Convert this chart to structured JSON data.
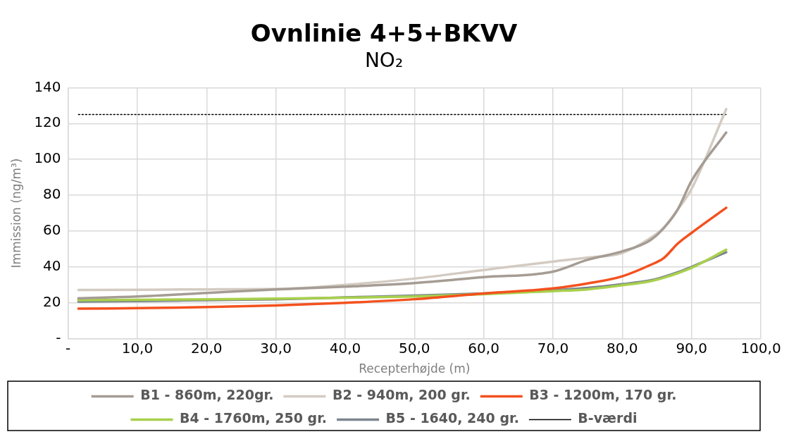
{
  "chart_data": {
    "type": "line",
    "title": "Ovnlinie 4+5+BKVV",
    "subtitle": "NO₂",
    "xlabel": "Recepterhøjde (m)",
    "ylabel": "Immission (ng/m³)",
    "xlim": [
      0,
      100
    ],
    "xticks": [
      {
        "value": 0,
        "label": "-"
      },
      {
        "value": 10,
        "label": "10,0"
      },
      {
        "value": 20,
        "label": "20,0"
      },
      {
        "value": 30,
        "label": "30,0"
      },
      {
        "value": 40,
        "label": "40,0"
      },
      {
        "value": 50,
        "label": "50,0"
      },
      {
        "value": 60,
        "label": "60,0"
      },
      {
        "value": 70,
        "label": "70,0"
      },
      {
        "value": 80,
        "label": "80,0"
      },
      {
        "value": 90,
        "label": "90,0"
      },
      {
        "value": 100,
        "label": "100,0"
      }
    ],
    "ylim": [
      0,
      140
    ],
    "yticks": [
      {
        "value": 0,
        "label": "-"
      },
      20,
      40,
      60,
      80,
      100,
      120,
      140
    ],
    "x": [
      1.5,
      10,
      20,
      30,
      40,
      50,
      60,
      70,
      75,
      80,
      84,
      86,
      88,
      90,
      95
    ],
    "series": [
      {
        "name": "B1 - 860m, 220gr.",
        "color": "#a59c94",
        "values": [
          22.5,
          23.5,
          25.5,
          27.5,
          29,
          31,
          34.3,
          37.4,
          44,
          48.7,
          54.8,
          61.7,
          72,
          88,
          115
        ]
      },
      {
        "name": "B2 - 940m, 200 gr.",
        "color": "#d3cbc2",
        "values": [
          27.2,
          27.3,
          27.5,
          27.7,
          30,
          33.5,
          38.3,
          43,
          45.2,
          47.8,
          56,
          62,
          72,
          83.5,
          128
        ]
      },
      {
        "name": "B3 - 1200m, 170 gr.",
        "color": "#f4511e",
        "values": [
          16.7,
          17,
          17.6,
          18.5,
          20,
          22,
          25.2,
          28,
          30.8,
          34.8,
          41,
          45,
          53,
          59,
          73
        ]
      },
      {
        "name": "B4 - 1760m, 250 gr.",
        "color": "#a9d04c",
        "values": [
          21.5,
          21.7,
          22,
          22.3,
          22.8,
          23.5,
          24.8,
          26.5,
          27.5,
          29.8,
          32,
          34,
          36.5,
          39.5,
          49.6
        ]
      },
      {
        "name": "B5 - 1640, 240 gr.",
        "color": "#7b8590",
        "values": [
          20.7,
          21,
          21.5,
          22,
          23,
          24,
          25.2,
          27,
          28.3,
          30.4,
          32.5,
          34.5,
          37,
          40,
          48.2
        ]
      },
      {
        "name": "B-værdi",
        "color": "#000000",
        "line_style": "dotted",
        "x": [
          1.5,
          95
        ],
        "values": [
          125,
          125
        ]
      }
    ],
    "grid": true,
    "legend": "bottom",
    "marker": "none",
    "line_style": "solid"
  }
}
